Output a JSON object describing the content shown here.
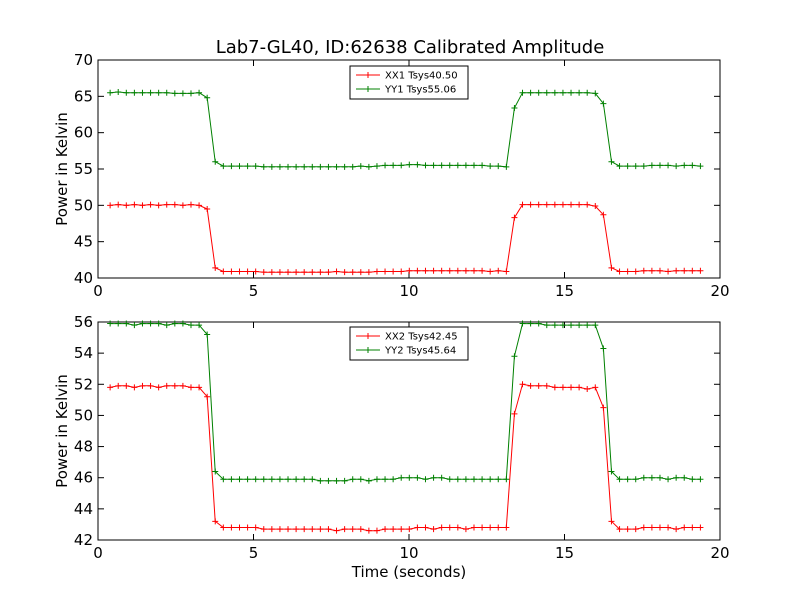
{
  "chart_data": [
    {
      "type": "line",
      "title": "Lab7-GL40, ID:62638 Calibrated Amplitude",
      "xlabel": "",
      "ylabel": "Power in Kelvin",
      "xlim": [
        0,
        20
      ],
      "ylim": [
        40,
        70
      ],
      "xticks": [
        0,
        5,
        10,
        15,
        20
      ],
      "yticks": [
        40,
        45,
        50,
        55,
        60,
        65,
        70
      ],
      "grid": false,
      "legend_position": "top-center",
      "x": [
        0.39,
        0.65,
        0.91,
        1.17,
        1.43,
        1.69,
        1.95,
        2.21,
        2.47,
        2.73,
        2.99,
        3.25,
        3.51,
        3.77,
        4.03,
        4.29,
        4.55,
        4.81,
        5.07,
        5.33,
        5.59,
        5.85,
        6.11,
        6.37,
        6.63,
        6.89,
        7.15,
        7.41,
        7.67,
        7.93,
        8.19,
        8.45,
        8.71,
        8.97,
        9.23,
        9.49,
        9.75,
        10.01,
        10.27,
        10.53,
        10.79,
        11.05,
        11.31,
        11.57,
        11.83,
        12.09,
        12.35,
        12.61,
        12.87,
        13.13,
        13.39,
        13.65,
        13.91,
        14.17,
        14.43,
        14.69,
        14.95,
        15.21,
        15.47,
        15.73,
        15.99,
        16.25,
        16.51,
        16.77,
        17.03,
        17.29,
        17.55,
        17.81,
        18.07,
        18.33,
        18.59,
        18.85,
        19.11,
        19.37
      ],
      "series": [
        {
          "name": "XX1 Tsys40.50",
          "color": "#ff0000",
          "values": [
            50.0,
            50.1,
            50.0,
            50.1,
            50.0,
            50.1,
            50.0,
            50.1,
            50.1,
            50.0,
            50.1,
            50.0,
            49.5,
            41.4,
            40.9,
            40.9,
            40.9,
            40.9,
            40.9,
            40.8,
            40.8,
            40.8,
            40.8,
            40.8,
            40.8,
            40.8,
            40.8,
            40.8,
            40.9,
            40.8,
            40.8,
            40.8,
            40.8,
            40.9,
            40.9,
            40.9,
            40.9,
            41.0,
            41.0,
            41.0,
            41.0,
            41.0,
            41.0,
            41.0,
            41.0,
            41.0,
            41.0,
            40.9,
            41.0,
            40.9,
            48.3,
            50.1,
            50.1,
            50.1,
            50.1,
            50.1,
            50.1,
            50.1,
            50.1,
            50.1,
            49.9,
            48.7,
            41.4,
            40.9,
            40.9,
            40.9,
            41.0,
            41.0,
            41.0,
            40.9,
            41.0,
            41.0,
            41.0,
            41.0
          ]
        },
        {
          "name": "YY1 Tsys55.06",
          "color": "#008000",
          "values": [
            65.5,
            65.6,
            65.5,
            65.5,
            65.5,
            65.5,
            65.5,
            65.5,
            65.4,
            65.4,
            65.4,
            65.5,
            64.8,
            56.0,
            55.4,
            55.4,
            55.4,
            55.4,
            55.4,
            55.3,
            55.3,
            55.3,
            55.3,
            55.3,
            55.3,
            55.3,
            55.3,
            55.3,
            55.3,
            55.3,
            55.3,
            55.4,
            55.3,
            55.4,
            55.5,
            55.5,
            55.5,
            55.6,
            55.6,
            55.5,
            55.5,
            55.5,
            55.5,
            55.5,
            55.5,
            55.5,
            55.5,
            55.4,
            55.4,
            55.3,
            63.4,
            65.5,
            65.5,
            65.5,
            65.5,
            65.5,
            65.5,
            65.5,
            65.5,
            65.5,
            65.4,
            64.0,
            56.0,
            55.4,
            55.4,
            55.4,
            55.4,
            55.5,
            55.5,
            55.5,
            55.4,
            55.5,
            55.5,
            55.4
          ]
        }
      ]
    },
    {
      "type": "line",
      "title": "",
      "xlabel": "Time (seconds)",
      "ylabel": "Power in Kelvin",
      "xlim": [
        0,
        20
      ],
      "ylim": [
        42,
        56
      ],
      "xticks": [
        0,
        5,
        10,
        15,
        20
      ],
      "yticks": [
        42,
        44,
        46,
        48,
        50,
        52,
        54,
        56
      ],
      "grid": false,
      "legend_position": "top-center",
      "x": [
        0.39,
        0.65,
        0.91,
        1.17,
        1.43,
        1.69,
        1.95,
        2.21,
        2.47,
        2.73,
        2.99,
        3.25,
        3.51,
        3.77,
        4.03,
        4.29,
        4.55,
        4.81,
        5.07,
        5.33,
        5.59,
        5.85,
        6.11,
        6.37,
        6.63,
        6.89,
        7.15,
        7.41,
        7.67,
        7.93,
        8.19,
        8.45,
        8.71,
        8.97,
        9.23,
        9.49,
        9.75,
        10.01,
        10.27,
        10.53,
        10.79,
        11.05,
        11.31,
        11.57,
        11.83,
        12.09,
        12.35,
        12.61,
        12.87,
        13.13,
        13.39,
        13.65,
        13.91,
        14.17,
        14.43,
        14.69,
        14.95,
        15.21,
        15.47,
        15.73,
        15.99,
        16.25,
        16.51,
        16.77,
        17.03,
        17.29,
        17.55,
        17.81,
        18.07,
        18.33,
        18.59,
        18.85,
        19.11,
        19.37
      ],
      "series": [
        {
          "name": "XX2 Tsys42.45",
          "color": "#ff0000",
          "values": [
            51.8,
            51.9,
            51.9,
            51.8,
            51.9,
            51.9,
            51.8,
            51.9,
            51.9,
            51.9,
            51.8,
            51.8,
            51.2,
            43.2,
            42.8,
            42.8,
            42.8,
            42.8,
            42.8,
            42.7,
            42.7,
            42.7,
            42.7,
            42.7,
            42.7,
            42.7,
            42.7,
            42.7,
            42.6,
            42.7,
            42.7,
            42.7,
            42.6,
            42.6,
            42.7,
            42.7,
            42.7,
            42.7,
            42.8,
            42.8,
            42.7,
            42.8,
            42.8,
            42.8,
            42.7,
            42.8,
            42.8,
            42.8,
            42.8,
            42.8,
            50.1,
            52.0,
            51.9,
            51.9,
            51.9,
            51.8,
            51.8,
            51.8,
            51.8,
            51.7,
            51.8,
            50.5,
            43.2,
            42.7,
            42.7,
            42.7,
            42.8,
            42.8,
            42.8,
            42.8,
            42.7,
            42.8,
            42.8,
            42.8
          ]
        },
        {
          "name": "YY2 Tsys45.64",
          "color": "#008000",
          "values": [
            55.9,
            55.9,
            55.9,
            55.8,
            55.9,
            55.9,
            55.9,
            55.8,
            55.9,
            55.9,
            55.8,
            55.8,
            55.2,
            46.4,
            45.9,
            45.9,
            45.9,
            45.9,
            45.9,
            45.9,
            45.9,
            45.9,
            45.9,
            45.9,
            45.9,
            45.9,
            45.8,
            45.8,
            45.8,
            45.8,
            45.9,
            45.9,
            45.8,
            45.9,
            45.9,
            45.9,
            46.0,
            46.0,
            46.0,
            45.9,
            46.0,
            46.0,
            45.9,
            45.9,
            45.9,
            45.9,
            45.9,
            45.9,
            45.9,
            45.9,
            53.8,
            55.9,
            55.9,
            55.9,
            55.8,
            55.8,
            55.8,
            55.8,
            55.8,
            55.8,
            55.8,
            54.3,
            46.4,
            45.9,
            45.9,
            45.9,
            46.0,
            46.0,
            46.0,
            45.9,
            46.0,
            46.0,
            45.9,
            45.9
          ]
        }
      ]
    }
  ]
}
